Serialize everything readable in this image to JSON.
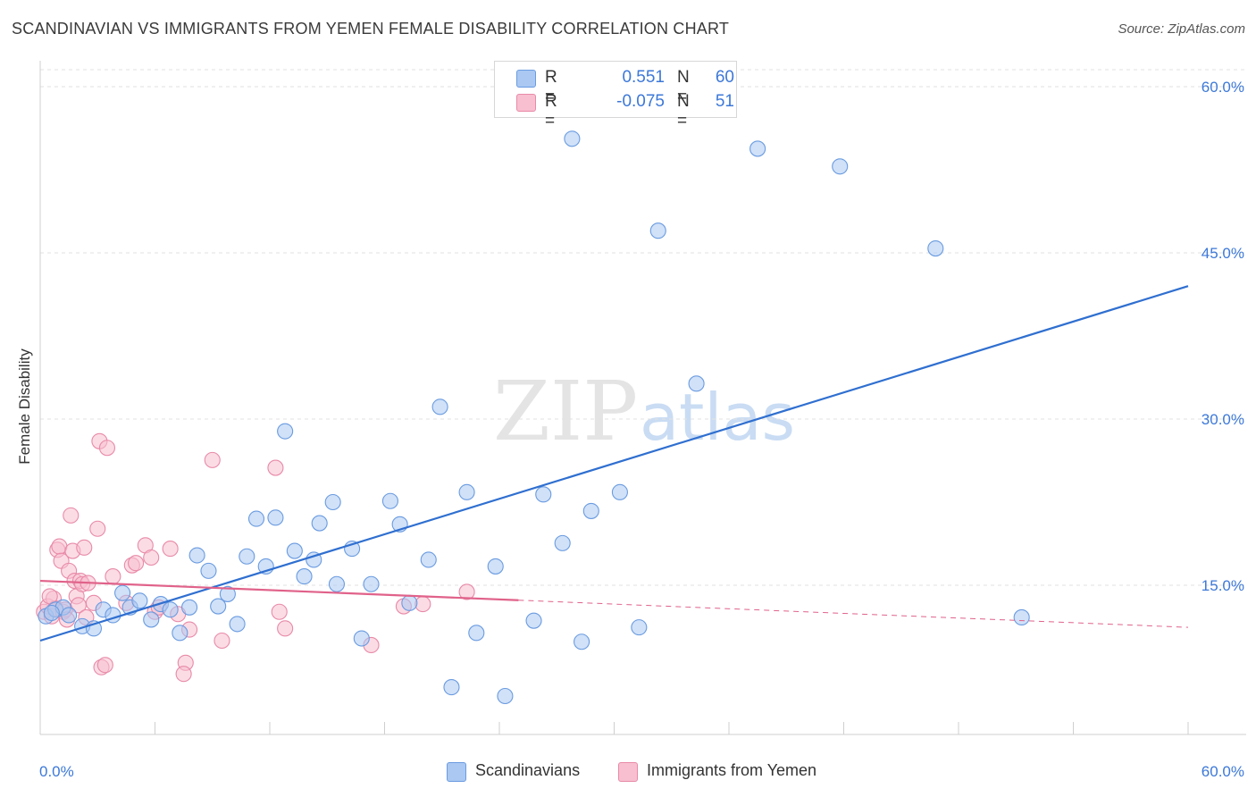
{
  "title": "SCANDINAVIAN VS IMMIGRANTS FROM YEMEN FEMALE DISABILITY CORRELATION CHART",
  "source": "Source: ZipAtlas.com",
  "watermark": {
    "zip": "ZIP",
    "atlas": "atlas"
  },
  "legend_top": [
    {
      "r_label": "R =",
      "r_value": "0.551",
      "n_label": "N =",
      "n_value": "60",
      "color": "#aac8f2",
      "border": "#6a9be0"
    },
    {
      "r_label": "R =",
      "r_value": "-0.075",
      "n_label": "N =",
      "n_value": "51",
      "color": "#f8bfd0",
      "border": "#e88aa8"
    }
  ],
  "legend_bottom": [
    {
      "label": "Scandinavians",
      "color": "#aac8f2",
      "border": "#6a9be0"
    },
    {
      "label": "Immigrants from Yemen",
      "color": "#f8bfd0",
      "border": "#e88aa8"
    }
  ],
  "chart_data": {
    "type": "scatter",
    "title": "SCANDINAVIAN VS IMMIGRANTS FROM YEMEN FEMALE DISABILITY CORRELATION CHART",
    "xlabel": "",
    "ylabel": "Female Disability",
    "xlim": [
      0,
      60
    ],
    "ylim": [
      0,
      62
    ],
    "x_tick_labels": [
      "0.0%",
      "60.0%"
    ],
    "y_ticks": [
      15,
      30,
      45,
      60
    ],
    "y_tick_labels": [
      "15.0%",
      "30.0%",
      "45.0%",
      "60.0%"
    ],
    "grid": true,
    "series": [
      {
        "name": "Scandinavians",
        "color": "#6a9be0",
        "fill": "#aac8f2",
        "line_color": "#2f6fd0",
        "trend": {
          "x": [
            0,
            60
          ],
          "y": [
            10.0,
            42.0
          ],
          "dashed_from": null
        },
        "points": [
          [
            0.3,
            12.2
          ],
          [
            0.8,
            12.8
          ],
          [
            1.2,
            13.0
          ],
          [
            1.5,
            12.3
          ],
          [
            2.2,
            11.3
          ],
          [
            2.8,
            11.1
          ],
          [
            3.3,
            12.8
          ],
          [
            3.8,
            12.3
          ],
          [
            4.3,
            14.3
          ],
          [
            4.7,
            13.0
          ],
          [
            5.2,
            13.6
          ],
          [
            5.8,
            11.9
          ],
          [
            6.3,
            13.3
          ],
          [
            6.8,
            12.8
          ],
          [
            7.3,
            10.7
          ],
          [
            7.8,
            13.0
          ],
          [
            8.2,
            17.7
          ],
          [
            8.8,
            16.3
          ],
          [
            9.3,
            13.1
          ],
          [
            9.8,
            14.2
          ],
          [
            10.3,
            11.5
          ],
          [
            10.8,
            17.6
          ],
          [
            11.3,
            21.0
          ],
          [
            11.8,
            16.7
          ],
          [
            12.3,
            21.1
          ],
          [
            12.8,
            28.9
          ],
          [
            13.3,
            18.1
          ],
          [
            13.8,
            15.8
          ],
          [
            14.3,
            17.3
          ],
          [
            14.6,
            20.6
          ],
          [
            15.3,
            22.5
          ],
          [
            15.5,
            15.1
          ],
          [
            16.3,
            18.3
          ],
          [
            16.8,
            10.2
          ],
          [
            17.3,
            15.1
          ],
          [
            18.3,
            22.6
          ],
          [
            18.8,
            20.5
          ],
          [
            19.3,
            13.4
          ],
          [
            20.3,
            17.3
          ],
          [
            20.9,
            31.1
          ],
          [
            21.5,
            5.8
          ],
          [
            22.3,
            23.4
          ],
          [
            22.8,
            10.7
          ],
          [
            23.8,
            16.7
          ],
          [
            24.3,
            5.0
          ],
          [
            25.8,
            11.8
          ],
          [
            26.3,
            23.2
          ],
          [
            27.3,
            18.8
          ],
          [
            27.8,
            55.3
          ],
          [
            28.3,
            9.9
          ],
          [
            28.8,
            21.7
          ],
          [
            30.3,
            23.4
          ],
          [
            31.3,
            11.2
          ],
          [
            32.3,
            47.0
          ],
          [
            34.3,
            33.2
          ],
          [
            37.5,
            54.4
          ],
          [
            41.8,
            52.8
          ],
          [
            46.8,
            45.4
          ],
          [
            51.3,
            12.1
          ],
          [
            0.6,
            12.5
          ]
        ]
      },
      {
        "name": "Immigrants from Yemen",
        "color": "#e88aa8",
        "fill": "#f8bfd0",
        "line_color": "#e0628a",
        "trend": {
          "x": [
            0,
            60
          ],
          "y": [
            15.4,
            11.2
          ],
          "dashed_from": 25
        },
        "points": [
          [
            0.2,
            12.6
          ],
          [
            0.4,
            13.1
          ],
          [
            0.6,
            12.2
          ],
          [
            0.7,
            13.8
          ],
          [
            0.8,
            12.9
          ],
          [
            0.9,
            18.2
          ],
          [
            1.0,
            18.5
          ],
          [
            1.1,
            17.2
          ],
          [
            1.2,
            12.6
          ],
          [
            1.3,
            12.8
          ],
          [
            1.4,
            11.9
          ],
          [
            1.5,
            16.3
          ],
          [
            1.6,
            21.3
          ],
          [
            1.7,
            18.1
          ],
          [
            1.8,
            15.4
          ],
          [
            1.9,
            14.0
          ],
          [
            2.0,
            13.2
          ],
          [
            2.1,
            15.4
          ],
          [
            2.2,
            15.1
          ],
          [
            2.3,
            18.4
          ],
          [
            2.4,
            12.1
          ],
          [
            2.5,
            15.2
          ],
          [
            2.8,
            13.4
          ],
          [
            3.0,
            20.1
          ],
          [
            3.1,
            28.0
          ],
          [
            3.2,
            7.6
          ],
          [
            3.4,
            7.8
          ],
          [
            3.5,
            27.4
          ],
          [
            3.8,
            15.8
          ],
          [
            4.5,
            13.4
          ],
          [
            4.8,
            16.8
          ],
          [
            5.0,
            17.0
          ],
          [
            5.5,
            18.6
          ],
          [
            5.8,
            17.5
          ],
          [
            6.0,
            12.6
          ],
          [
            6.2,
            13.0
          ],
          [
            6.8,
            18.3
          ],
          [
            7.2,
            12.4
          ],
          [
            7.6,
            8.0
          ],
          [
            7.8,
            11.0
          ],
          [
            9.0,
            26.3
          ],
          [
            9.5,
            10.0
          ],
          [
            12.3,
            25.6
          ],
          [
            12.5,
            12.6
          ],
          [
            12.8,
            11.1
          ],
          [
            17.3,
            9.6
          ],
          [
            19.0,
            13.1
          ],
          [
            20.0,
            13.3
          ],
          [
            22.3,
            14.4
          ],
          [
            0.5,
            14.0
          ],
          [
            7.5,
            7.0
          ]
        ]
      }
    ]
  }
}
